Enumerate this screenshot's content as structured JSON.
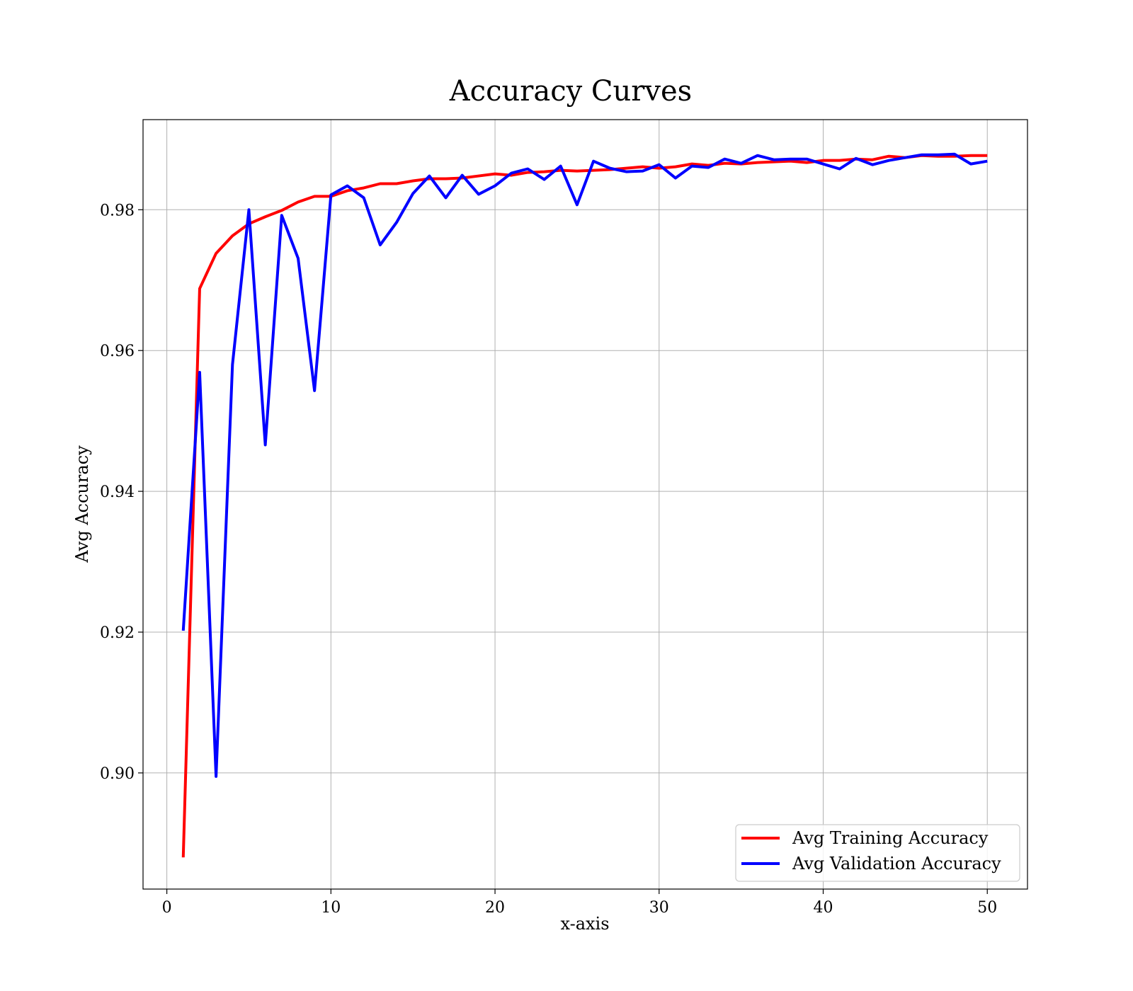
{
  "chart_data": {
    "type": "line",
    "title": "Accuracy Curves",
    "xlabel": "x-axis",
    "ylabel": "Avg Accuracy",
    "xlim": [
      -1.45,
      52.45
    ],
    "ylim": [
      0.8835,
      0.9928
    ],
    "xticks": [
      0,
      10,
      20,
      30,
      40,
      50
    ],
    "xtick_labels": [
      "0",
      "10",
      "20",
      "30",
      "40",
      "50"
    ],
    "yticks": [
      0.9,
      0.92,
      0.94,
      0.96,
      0.98
    ],
    "ytick_labels": [
      "0.90",
      "0.92",
      "0.94",
      "0.96",
      "0.98"
    ],
    "grid": true,
    "legend_position": "bottom-right",
    "x": [
      1,
      2,
      3,
      4,
      5,
      6,
      7,
      8,
      9,
      10,
      11,
      12,
      13,
      14,
      15,
      16,
      17,
      18,
      19,
      20,
      21,
      22,
      23,
      24,
      25,
      26,
      27,
      28,
      29,
      30,
      31,
      32,
      33,
      34,
      35,
      36,
      37,
      38,
      39,
      40,
      41,
      42,
      43,
      44,
      45,
      46,
      47,
      48,
      49,
      50
    ],
    "series": [
      {
        "name": "Avg Training Accuracy",
        "color": "#ff0000",
        "values": [
          0.888,
          0.9688,
          0.9738,
          0.9763,
          0.978,
          0.979,
          0.9799,
          0.9811,
          0.9819,
          0.9819,
          0.9827,
          0.9831,
          0.9837,
          0.9837,
          0.9841,
          0.9844,
          0.9844,
          0.9845,
          0.9848,
          0.9851,
          0.9849,
          0.9853,
          0.9854,
          0.9856,
          0.9855,
          0.9856,
          0.9857,
          0.9859,
          0.9861,
          0.9859,
          0.9861,
          0.9865,
          0.9863,
          0.9866,
          0.9865,
          0.9867,
          0.9868,
          0.9869,
          0.9867,
          0.987,
          0.987,
          0.9872,
          0.9871,
          0.9876,
          0.9874,
          0.9877,
          0.9876,
          0.9876,
          0.9877,
          0.9877
        ]
      },
      {
        "name": "Avg Validation Accuracy",
        "color": "#0000ff",
        "values": [
          0.9202,
          0.9569,
          0.8995,
          0.958,
          0.98,
          0.9466,
          0.9792,
          0.9731,
          0.9543,
          0.9821,
          0.9834,
          0.9817,
          0.975,
          0.9782,
          0.9823,
          0.9848,
          0.9817,
          0.9849,
          0.9822,
          0.9834,
          0.9852,
          0.9858,
          0.9843,
          0.9862,
          0.9807,
          0.9869,
          0.9859,
          0.9854,
          0.9855,
          0.9864,
          0.9845,
          0.9862,
          0.986,
          0.9872,
          0.9866,
          0.9877,
          0.9871,
          0.9872,
          0.9872,
          0.9865,
          0.9858,
          0.9873,
          0.9864,
          0.987,
          0.9874,
          0.9878,
          0.9878,
          0.9879,
          0.9865,
          0.9869
        ]
      }
    ]
  }
}
